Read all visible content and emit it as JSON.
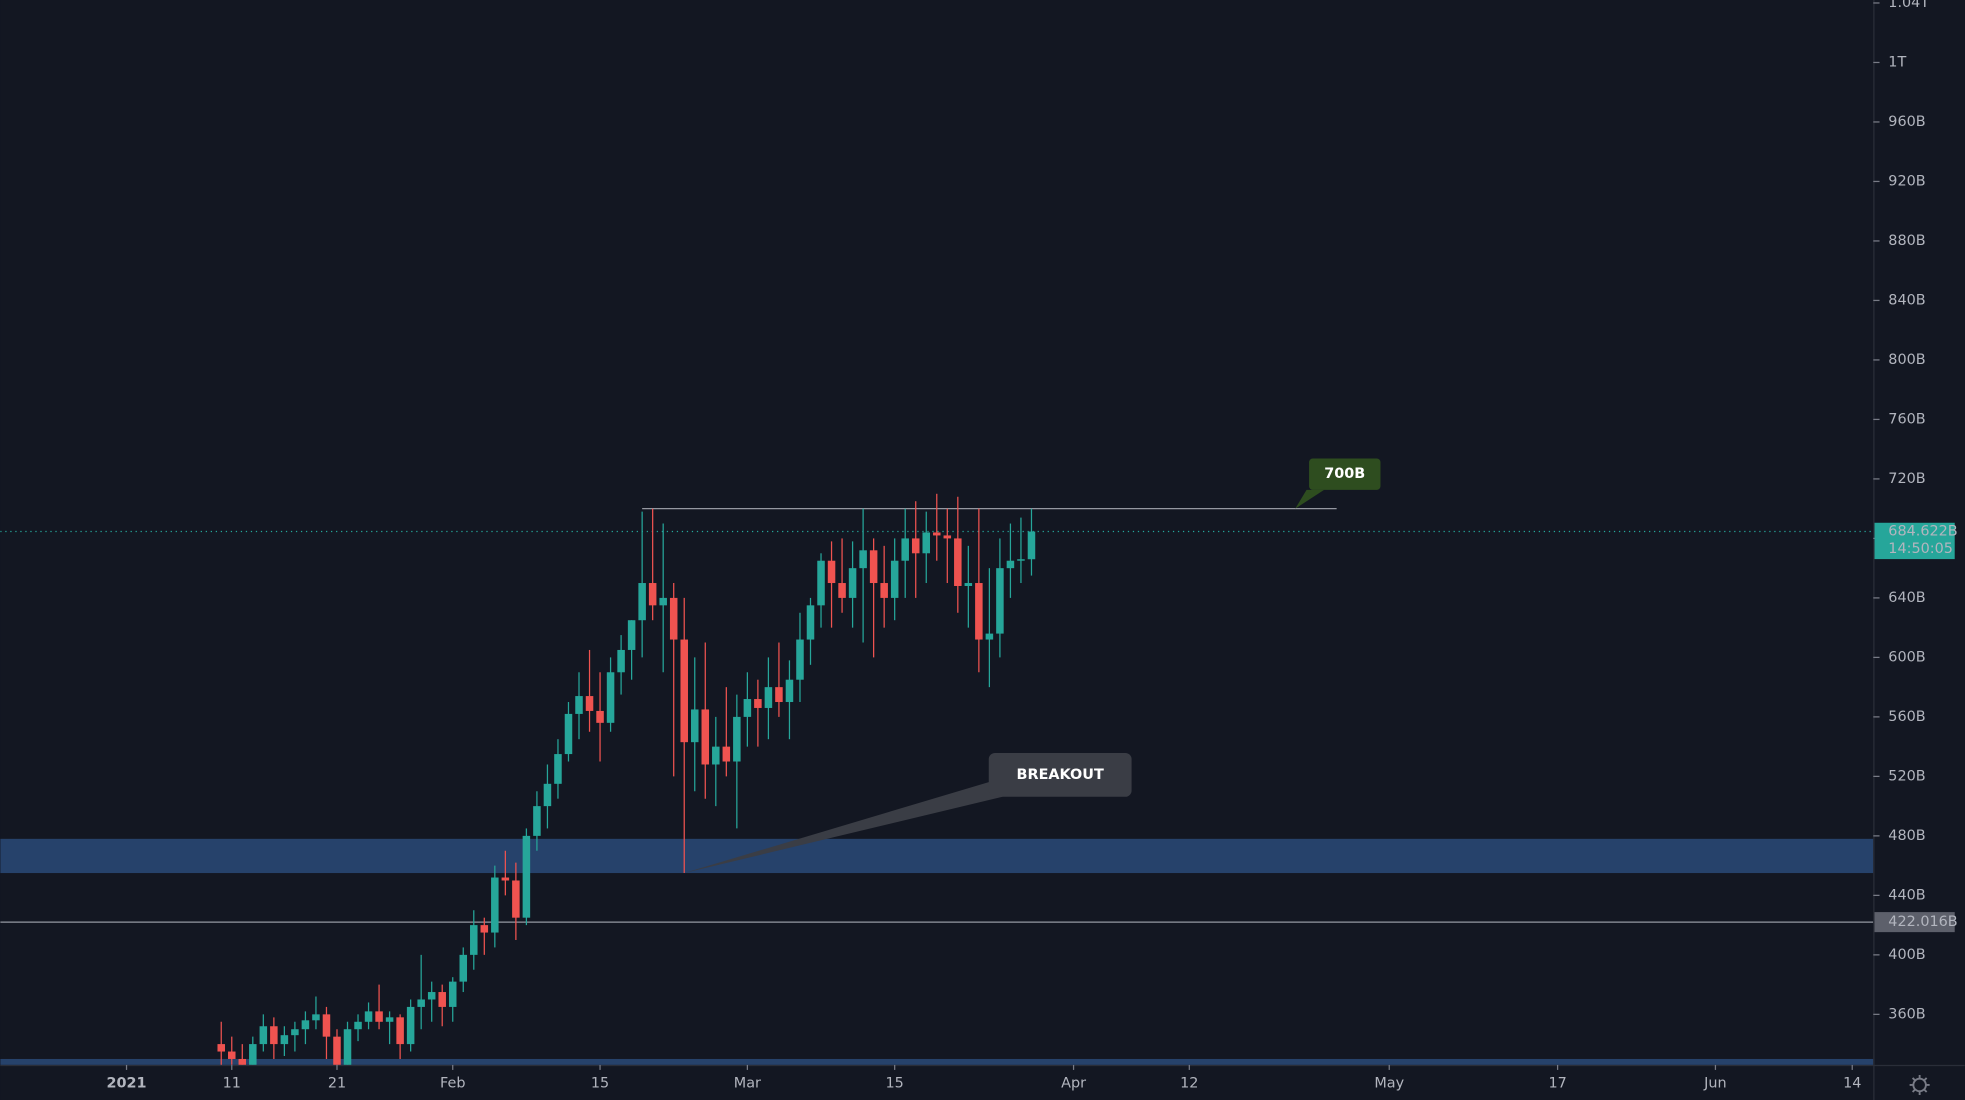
{
  "chart_data": {
    "type": "candlestick",
    "up_color": "#26a69a",
    "down_color": "#ef5350",
    "x": [
      "2021-01-10",
      "2021-01-11",
      "2021-01-12",
      "2021-01-13",
      "2021-01-14",
      "2021-01-15",
      "2021-01-16",
      "2021-01-17",
      "2021-01-18",
      "2021-01-19",
      "2021-01-20",
      "2021-01-21",
      "2021-01-22",
      "2021-01-23",
      "2021-01-24",
      "2021-01-25",
      "2021-01-26",
      "2021-01-27",
      "2021-01-28",
      "2021-01-29",
      "2021-01-30",
      "2021-01-31",
      "2021-02-01",
      "2021-02-02",
      "2021-02-03",
      "2021-02-04",
      "2021-02-05",
      "2021-02-06",
      "2021-02-07",
      "2021-02-08",
      "2021-02-09",
      "2021-02-10",
      "2021-02-11",
      "2021-02-12",
      "2021-02-13",
      "2021-02-14",
      "2021-02-15",
      "2021-02-16",
      "2021-02-17",
      "2021-02-18",
      "2021-02-19",
      "2021-02-20",
      "2021-02-21",
      "2021-02-22",
      "2021-02-23",
      "2021-02-24",
      "2021-02-25",
      "2021-02-26",
      "2021-02-27",
      "2021-02-28",
      "2021-03-01",
      "2021-03-02",
      "2021-03-03",
      "2021-03-04",
      "2021-03-05",
      "2021-03-06",
      "2021-03-07",
      "2021-03-08",
      "2021-03-09",
      "2021-03-10",
      "2021-03-11",
      "2021-03-12",
      "2021-03-13",
      "2021-03-14",
      "2021-03-15",
      "2021-03-16",
      "2021-03-17",
      "2021-03-18",
      "2021-03-19",
      "2021-03-20",
      "2021-03-21",
      "2021-03-22",
      "2021-03-23",
      "2021-03-24",
      "2021-03-25",
      "2021-03-26",
      "2021-03-27",
      "2021-03-28"
    ],
    "open": [
      340,
      335,
      330,
      320,
      340,
      352,
      340,
      346,
      350,
      356,
      360,
      345,
      325,
      350,
      355,
      362,
      355,
      358,
      340,
      365,
      370,
      375,
      365,
      382,
      400,
      420,
      415,
      452,
      450,
      425,
      480,
      500,
      515,
      535,
      562,
      574,
      564,
      556,
      590,
      605,
      625,
      650,
      635,
      640,
      612,
      543,
      565,
      528,
      540,
      530,
      560,
      572,
      566,
      580,
      570,
      585,
      612,
      635,
      665,
      650,
      640,
      660,
      672,
      650,
      640,
      665,
      680,
      670,
      684,
      682,
      680,
      648,
      650,
      612,
      616,
      660,
      665,
      666
    ],
    "high": [
      355,
      345,
      340,
      345,
      360,
      358,
      352,
      355,
      362,
      372,
      365,
      350,
      355,
      360,
      368,
      380,
      362,
      360,
      370,
      400,
      382,
      380,
      385,
      405,
      430,
      425,
      460,
      470,
      462,
      485,
      510,
      528,
      545,
      570,
      590,
      605,
      590,
      600,
      615,
      625,
      698,
      700,
      690,
      650,
      640,
      600,
      610,
      560,
      580,
      575,
      590,
      585,
      600,
      610,
      598,
      630,
      640,
      670,
      678,
      680,
      678,
      700,
      680,
      675,
      680,
      700,
      705,
      698,
      710,
      700,
      708,
      675,
      700,
      660,
      680,
      690,
      694,
      700
    ],
    "low": [
      325,
      300,
      310,
      315,
      335,
      330,
      332,
      335,
      340,
      350,
      330,
      310,
      318,
      342,
      350,
      350,
      340,
      330,
      335,
      350,
      355,
      352,
      355,
      375,
      390,
      400,
      405,
      440,
      410,
      420,
      470,
      485,
      505,
      530,
      545,
      550,
      530,
      550,
      575,
      585,
      600,
      625,
      590,
      520,
      455,
      510,
      505,
      500,
      520,
      485,
      540,
      540,
      545,
      560,
      545,
      570,
      595,
      620,
      620,
      630,
      620,
      610,
      600,
      620,
      625,
      640,
      640,
      650,
      665,
      650,
      630,
      620,
      590,
      580,
      600,
      640,
      650,
      655
    ],
    "close": [
      335,
      330,
      320,
      340,
      352,
      340,
      346,
      350,
      356,
      360,
      345,
      325,
      350,
      355,
      362,
      355,
      358,
      340,
      365,
      370,
      375,
      365,
      382,
      400,
      420,
      415,
      452,
      450,
      425,
      480,
      500,
      515,
      535,
      562,
      574,
      564,
      556,
      590,
      605,
      625,
      650,
      635,
      640,
      612,
      543,
      565,
      528,
      540,
      530,
      560,
      572,
      566,
      580,
      570,
      585,
      612,
      635,
      665,
      650,
      640,
      660,
      672,
      650,
      640,
      665,
      680,
      670,
      684,
      682,
      680,
      648,
      650,
      612,
      616,
      660,
      665,
      666,
      684.622
    ],
    "xlim": [
      "2020-12-20",
      "2021-06-16"
    ],
    "xticks": [
      {
        "value": "2021-01-01",
        "label": "2021"
      },
      {
        "value": "2021-01-11",
        "label": "11"
      },
      {
        "value": "2021-01-21",
        "label": "21"
      },
      {
        "value": "2021-02-01",
        "label": "Feb"
      },
      {
        "value": "2021-02-15",
        "label": "15"
      },
      {
        "value": "2021-03-01",
        "label": "Mar"
      },
      {
        "value": "2021-03-15",
        "label": "15"
      },
      {
        "value": "2021-04-01",
        "label": "Apr"
      },
      {
        "value": "2021-04-12",
        "label": "12"
      },
      {
        "value": "2021-05-01",
        "label": "May"
      },
      {
        "value": "2021-05-17",
        "label": "17"
      },
      {
        "value": "2021-06-01",
        "label": "Jun"
      },
      {
        "value": "2021-06-14",
        "label": "14"
      }
    ],
    "ylim": [
      326,
      1042
    ],
    "yticks": [
      {
        "value": 360,
        "label": "360B"
      },
      {
        "value": 400,
        "label": "400B"
      },
      {
        "value": 440,
        "label": "440B"
      },
      {
        "value": 480,
        "label": "480B"
      },
      {
        "value": 520,
        "label": "520B"
      },
      {
        "value": 560,
        "label": "560B"
      },
      {
        "value": 600,
        "label": "600B"
      },
      {
        "value": 640,
        "label": "640B"
      },
      {
        "value": 680,
        "label": "680B"
      },
      {
        "value": 720,
        "label": "720B"
      },
      {
        "value": 760,
        "label": "760B"
      },
      {
        "value": 800,
        "label": "800B"
      },
      {
        "value": 840,
        "label": "840B"
      },
      {
        "value": 880,
        "label": "880B"
      },
      {
        "value": 920,
        "label": "920B"
      },
      {
        "value": 960,
        "label": "960B"
      },
      {
        "value": 1000,
        "label": "1T"
      },
      {
        "value": 1040,
        "label": "1.04T"
      }
    ],
    "grid": false,
    "resistance": {
      "value": 700,
      "label": "700B",
      "start": "2021-02-19",
      "end": "2021-04-26",
      "color": "#9598a1"
    },
    "zones": [
      {
        "low": 455,
        "high": 478,
        "color": "#2a4a78"
      },
      {
        "low": 322,
        "high": 330,
        "color": "#2a4a78"
      }
    ],
    "level_line": {
      "value": 422.016,
      "label": "422.016B",
      "color": "#9598a1"
    },
    "last_price": {
      "value": 684.622,
      "label": "684.622B",
      "countdown": "14:50:05",
      "color": "#26a69a"
    },
    "breakout": {
      "label": "BREAKOUT",
      "date": "2021-02-23",
      "value": 455
    }
  }
}
